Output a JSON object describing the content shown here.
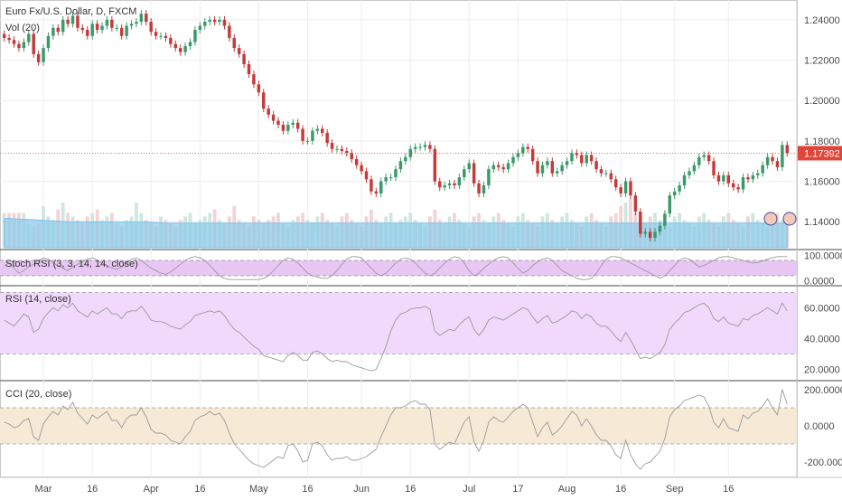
{
  "chart_data": {
    "type": "candlestick-multipane",
    "title": "Euro Fx/U.S. Dollar, D, FXCM",
    "volume_label": "Vol (20)",
    "x_ticks": [
      "Mar",
      "16",
      "Apr",
      "16",
      "May",
      "16",
      "Jun",
      "16",
      "Jul",
      "17",
      "Aug",
      "16",
      "Sep",
      "16"
    ],
    "price": {
      "ylim": [
        1.128,
        1.248
      ],
      "y_ticks": [
        "1.24000",
        "1.22000",
        "1.20000",
        "1.18000",
        "1.16000",
        "1.14000"
      ],
      "last_price_label": "1.17392",
      "last_price": 1.17392,
      "closes": [
        1.231,
        1.23,
        1.228,
        1.226,
        1.229,
        1.233,
        1.223,
        1.219,
        1.226,
        1.232,
        1.236,
        1.234,
        1.24,
        1.238,
        1.242,
        1.236,
        1.235,
        1.232,
        1.238,
        1.235,
        1.237,
        1.24,
        1.236,
        1.236,
        1.232,
        1.237,
        1.238,
        1.239,
        1.243,
        1.239,
        1.234,
        1.232,
        1.232,
        1.231,
        1.228,
        1.226,
        1.224,
        1.227,
        1.229,
        1.235,
        1.237,
        1.239,
        1.24,
        1.239,
        1.24,
        1.237,
        1.231,
        1.226,
        1.223,
        1.218,
        1.213,
        1.208,
        1.204,
        1.196,
        1.193,
        1.19,
        1.188,
        1.185,
        1.188,
        1.189,
        1.186,
        1.18,
        1.18,
        1.185,
        1.186,
        1.184,
        1.179,
        1.176,
        1.176,
        1.175,
        1.174,
        1.171,
        1.168,
        1.165,
        1.161,
        1.155,
        1.154,
        1.16,
        1.162,
        1.162,
        1.166,
        1.17,
        1.172,
        1.176,
        1.177,
        1.177,
        1.178,
        1.176,
        1.16,
        1.157,
        1.158,
        1.159,
        1.158,
        1.162,
        1.166,
        1.169,
        1.159,
        1.154,
        1.158,
        1.166,
        1.168,
        1.167,
        1.166,
        1.169,
        1.172,
        1.174,
        1.177,
        1.176,
        1.17,
        1.164,
        1.168,
        1.17,
        1.164,
        1.165,
        1.168,
        1.17,
        1.174,
        1.173,
        1.169,
        1.173,
        1.17,
        1.166,
        1.164,
        1.164,
        1.161,
        1.157,
        1.154,
        1.16,
        1.153,
        1.145,
        1.134,
        1.135,
        1.132,
        1.135,
        1.138,
        1.144,
        1.153,
        1.155,
        1.158,
        1.163,
        1.165,
        1.168,
        1.172,
        1.173,
        1.17,
        1.163,
        1.16,
        1.163,
        1.159,
        1.157,
        1.156,
        1.162,
        1.161,
        1.163,
        1.164,
        1.168,
        1.172,
        1.17,
        1.167,
        1.178,
        1.174
      ]
    },
    "volume": {
      "values": [
        1,
        1,
        1,
        1,
        1,
        0.7,
        0.6,
        0.7,
        1.2,
        0.9,
        0.8,
        1.1,
        1.3,
        1.0,
        0.9,
        0.8,
        0.7,
        0.9,
        1.0,
        1.1,
        0.8,
        0.9,
        1.0,
        0.7,
        0.6,
        0.8,
        0.9,
        1.3,
        1.0,
        0.8,
        0.7,
        0.6,
        0.9,
        0.8,
        0.7,
        0.6,
        0.8,
        0.9,
        1.0,
        0.7,
        0.8,
        0.9,
        1.0,
        1.1,
        0.8,
        0.7,
        0.9,
        1.2,
        0.8,
        0.7,
        0.6,
        0.9,
        0.8,
        0.7,
        0.8,
        0.9,
        1.0,
        0.7,
        0.6,
        0.8,
        0.9,
        1.0,
        0.8,
        0.7,
        0.9,
        1.0,
        0.8,
        0.7,
        0.6,
        0.9,
        1.0,
        0.8,
        0.7,
        0.6,
        0.9,
        1.1,
        0.8,
        0.7,
        0.9,
        1.0,
        0.7,
        0.8,
        0.9,
        1.0,
        0.8,
        0.7,
        0.6,
        0.9,
        1.1,
        0.8,
        0.7,
        0.9,
        1.0,
        0.8,
        0.7,
        0.6,
        0.9,
        1.0,
        0.8,
        0.7,
        0.9,
        1.0,
        0.8,
        0.7,
        0.6,
        0.9,
        1.0,
        0.8,
        0.7,
        0.6,
        0.9,
        1.0,
        0.8,
        0.7,
        0.9,
        1.0,
        0.8,
        0.7,
        0.6,
        0.9,
        1.0,
        0.8,
        0.7,
        0.6,
        0.9,
        1.0,
        1.2,
        1.3,
        1.4,
        1.0,
        0.8,
        0.7,
        0.9,
        1.0,
        0.8,
        0.7,
        0.6,
        0.9,
        1.0,
        0.8,
        0.7,
        0.6,
        0.9,
        1.0,
        0.8,
        0.7,
        0.6,
        0.9,
        1.0,
        0.8,
        0.7,
        0.6,
        0.9,
        1.0,
        0.8,
        0.7,
        0.6,
        0.9,
        1.0,
        0.8,
        0.9,
        1.1,
        1.0
      ]
    },
    "volume_ma": [
      0.95,
      0.95,
      0.94,
      0.93,
      0.92,
      0.92,
      0.91,
      0.9,
      0.89,
      0.88,
      0.87,
      0.86,
      0.85,
      0.84,
      0.84,
      0.84,
      0.84,
      0.84,
      0.84,
      0.84,
      0.84,
      0.84,
      0.84,
      0.84,
      0.84,
      0.84,
      0.84,
      0.84,
      0.84,
      0.84,
      0.83,
      0.82,
      0.81,
      0.8,
      0.8,
      0.8,
      0.8,
      0.8,
      0.8,
      0.8,
      0.8,
      0.8,
      0.8,
      0.8,
      0.8,
      0.8,
      0.8,
      0.8,
      0.8,
      0.8,
      0.8,
      0.8,
      0.8,
      0.8,
      0.8,
      0.8,
      0.8,
      0.8,
      0.8,
      0.8,
      0.8,
      0.8,
      0.8,
      0.8,
      0.8,
      0.8,
      0.8,
      0.8,
      0.8,
      0.8,
      0.8,
      0.8,
      0.8,
      0.8,
      0.8,
      0.8,
      0.8,
      0.8,
      0.8,
      0.8,
      0.8,
      0.8,
      0.8,
      0.8,
      0.8,
      0.8,
      0.8,
      0.8,
      0.8,
      0.8,
      0.8,
      0.8,
      0.8,
      0.8,
      0.8,
      0.8,
      0.8,
      0.8,
      0.8,
      0.8,
      0.8,
      0.8,
      0.8,
      0.8,
      0.8,
      0.8,
      0.8,
      0.8,
      0.8,
      0.8,
      0.8,
      0.8,
      0.8,
      0.8,
      0.8,
      0.8,
      0.8,
      0.8,
      0.8,
      0.8,
      0.8,
      0.8,
      0.8,
      0.8,
      0.8,
      0.8,
      0.8,
      0.8,
      0.8,
      0.8,
      0.8,
      0.8,
      0.8,
      0.8,
      0.8,
      0.8,
      0.8,
      0.8,
      0.8,
      0.8,
      0.8,
      0.8,
      0.8,
      0.8,
      0.8,
      0.8,
      0.8,
      0.8,
      0.8,
      0.8,
      0.8,
      0.8,
      0.8,
      0.8,
      0.8,
      0.8,
      0.8,
      0.8,
      0.8
    ],
    "stoch_rsi": {
      "label": "Stoch RSI (3, 3, 14, 14, close)",
      "ylim": [
        0,
        100
      ],
      "y_ticks": [
        "100.0000",
        "0.0000"
      ],
      "values": [
        60,
        70,
        50,
        30,
        40,
        55,
        65,
        80,
        90,
        85,
        70,
        60,
        50,
        40,
        55,
        65,
        75,
        85,
        90,
        80,
        70,
        60,
        50,
        45,
        55,
        70,
        85,
        90,
        80,
        65,
        50,
        40,
        30,
        25,
        35,
        50,
        65,
        80,
        90,
        95,
        90,
        80,
        60,
        40,
        20,
        10,
        5,
        5,
        5,
        5,
        5,
        5,
        5,
        10,
        20,
        40,
        60,
        80,
        90,
        85,
        70,
        50,
        30,
        20,
        15,
        10,
        10,
        20,
        40,
        65,
        85,
        95,
        95,
        90,
        70,
        50,
        30,
        20,
        30,
        50,
        70,
        85,
        90,
        85,
        70,
        50,
        30,
        20,
        30,
        50,
        70,
        85,
        95,
        90,
        70,
        40,
        20,
        30,
        50,
        65,
        80,
        90,
        95,
        90,
        70,
        50,
        30,
        40,
        60,
        75,
        85,
        90,
        80,
        60,
        40,
        30,
        20,
        10,
        5,
        5,
        10,
        30,
        60,
        85,
        95,
        95,
        90,
        80,
        70,
        60,
        50,
        40,
        30,
        20,
        10,
        20,
        40,
        60,
        80,
        90,
        85,
        70,
        55,
        60,
        70,
        80,
        90,
        95,
        95,
        90,
        85,
        80,
        75,
        70,
        72,
        78,
        85,
        90,
        95,
        95,
        95
      ]
    },
    "rsi": {
      "label": "RSI (14, close)",
      "ylim": [
        15,
        72
      ],
      "y_ticks": [
        "60.0000",
        "40.0000",
        "20.0000"
      ],
      "band": [
        30,
        70
      ],
      "values": [
        52,
        50,
        48,
        52,
        56,
        54,
        44,
        46,
        53,
        57,
        60,
        58,
        62,
        60,
        63,
        58,
        56,
        54,
        58,
        56,
        58,
        60,
        56,
        56,
        53,
        57,
        58,
        58,
        61,
        57,
        52,
        51,
        51,
        50,
        48,
        47,
        46,
        49,
        51,
        55,
        56,
        57,
        58,
        57,
        58,
        55,
        50,
        46,
        44,
        41,
        38,
        35,
        33,
        29,
        28,
        27,
        26,
        25,
        29,
        31,
        29,
        26,
        26,
        31,
        32,
        30,
        27,
        25,
        26,
        25,
        25,
        23,
        22,
        21,
        20,
        19,
        20,
        27,
        35,
        45,
        52,
        56,
        57,
        59,
        60,
        60,
        61,
        59,
        45,
        42,
        44,
        46,
        45,
        49,
        52,
        54,
        46,
        42,
        46,
        52,
        54,
        53,
        52,
        54,
        56,
        58,
        60,
        59,
        54,
        50,
        53,
        55,
        50,
        51,
        53,
        55,
        58,
        57,
        53,
        56,
        54,
        50,
        48,
        48,
        45,
        41,
        38,
        44,
        39,
        33,
        27,
        28,
        27,
        29,
        31,
        36,
        46,
        50,
        53,
        57,
        58,
        60,
        62,
        63,
        60,
        53,
        51,
        54,
        50,
        49,
        48,
        53,
        52,
        55,
        56,
        58,
        60,
        58,
        56,
        63,
        58
      ]
    },
    "cci": {
      "label": "CCI (20, close)",
      "ylim": [
        -250,
        230
      ],
      "y_ticks": [
        "200.0000",
        "0.0000",
        "-200.0000"
      ],
      "band": [
        -100,
        100
      ],
      "values": [
        20,
        10,
        -10,
        0,
        30,
        40,
        -60,
        -80,
        10,
        50,
        80,
        60,
        110,
        90,
        130,
        70,
        40,
        10,
        60,
        40,
        60,
        80,
        30,
        30,
        -10,
        40,
        60,
        60,
        100,
        50,
        -20,
        -40,
        -40,
        -50,
        -80,
        -90,
        -100,
        -60,
        -30,
        30,
        50,
        60,
        80,
        60,
        70,
        30,
        -40,
        -100,
        -130,
        -160,
        -190,
        -210,
        -220,
        -230,
        -210,
        -190,
        -170,
        -180,
        -110,
        -100,
        -140,
        -200,
        -190,
        -100,
        -90,
        -110,
        -160,
        -190,
        -180,
        -180,
        -170,
        -190,
        -190,
        -180,
        -170,
        -150,
        -130,
        -60,
        0,
        60,
        100,
        100,
        110,
        130,
        140,
        120,
        120,
        90,
        -100,
        -130,
        -110,
        -90,
        -100,
        -40,
        20,
        50,
        -90,
        -140,
        -80,
        20,
        50,
        30,
        20,
        50,
        80,
        100,
        120,
        100,
        20,
        -60,
        -10,
        20,
        -50,
        -30,
        0,
        40,
        80,
        60,
        0,
        40,
        0,
        -50,
        -80,
        -80,
        -110,
        -160,
        -180,
        -80,
        -160,
        -210,
        -240,
        -210,
        -200,
        -170,
        -140,
        -70,
        50,
        90,
        110,
        140,
        150,
        160,
        170,
        160,
        110,
        20,
        -10,
        40,
        -10,
        -20,
        -30,
        60,
        40,
        70,
        80,
        110,
        150,
        100,
        60,
        200,
        120
      ]
    },
    "colors": {
      "up": "#3c9a6a",
      "down": "#c53a3a",
      "volume": "#8ecbe9",
      "volume_ma": "#7ec3f0",
      "stoch_band": "#e8c7f5",
      "rsi_band": "#f0d9fb",
      "cci_band": "#f6e9d6",
      "osc_line": "#9a9a9a",
      "price_line": "#e05a47",
      "price_label_bg": "#e0453a"
    }
  }
}
